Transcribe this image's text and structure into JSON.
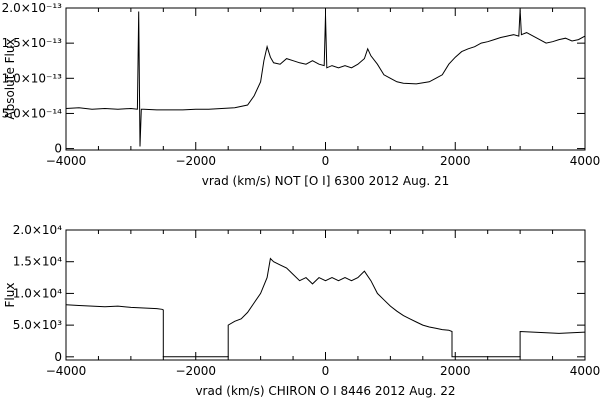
{
  "chart_data": [
    {
      "type": "line",
      "title": "",
      "xlabel": "vrad (km/s)   NOT [O I] 6300   2012 Aug. 21",
      "ylabel": "Absolute Flux",
      "xlim": [
        -4000,
        4000
      ],
      "ylim": [
        -2e-15,
        2e-13
      ],
      "x_ticks": [
        -4000,
        -2000,
        0,
        2000,
        4000
      ],
      "x_tick_labels": [
        "−4000",
        "−2000",
        "0",
        "2000",
        "4000"
      ],
      "y_ticks": [
        0,
        5e-14,
        1e-13,
        1.5e-13,
        2e-13
      ],
      "y_tick_labels": [
        "0",
        "5.0×10⁻¹⁴",
        "1.0×10⁻¹³",
        "1.5×10⁻¹³",
        "2.0×10⁻¹³"
      ],
      "grid": false,
      "series": [
        {
          "x": [
            -4000,
            -3800,
            -3600,
            -3400,
            -3200,
            -3000,
            -2900,
            -2880,
            -2860,
            -2840,
            -2800,
            -2600,
            -2400,
            -2200,
            -2000,
            -1800,
            -1600,
            -1400,
            -1200,
            -1100,
            -1000,
            -950,
            -900,
            -850,
            -800,
            -700,
            -600,
            -500,
            -400,
            -300,
            -200,
            -100,
            -20,
            0,
            20,
            100,
            200,
            300,
            400,
            500,
            600,
            650,
            700,
            800,
            900,
            1000,
            1100,
            1200,
            1400,
            1600,
            1700,
            1800,
            1900,
            2000,
            2100,
            2200,
            2300,
            2400,
            2500,
            2600,
            2700,
            2800,
            2900,
            2980,
            3000,
            3020,
            3100,
            3200,
            3300,
            3400,
            3500,
            3600,
            3700,
            3800,
            3900,
            4000
          ],
          "y": [
            5.7e-14,
            5.8e-14,
            5.6e-14,
            5.7e-14,
            5.6e-14,
            5.7e-14,
            5.6e-14,
            1.95e-13,
            3e-15,
            5.6e-14,
            5.6e-14,
            5.5e-14,
            5.5e-14,
            5.5e-14,
            5.6e-14,
            5.6e-14,
            5.7e-14,
            5.8e-14,
            6.2e-14,
            7.5e-14,
            9.5e-14,
            1.25e-13,
            1.45e-13,
            1.3e-13,
            1.22e-13,
            1.2e-13,
            1.28e-13,
            1.25e-13,
            1.22e-13,
            1.2e-13,
            1.25e-13,
            1.2e-13,
            1.18e-13,
            1.9e-13,
            1.15e-13,
            1.18e-13,
            1.15e-13,
            1.18e-13,
            1.15e-13,
            1.2e-13,
            1.28e-13,
            1.42e-13,
            1.32e-13,
            1.2e-13,
            1.05e-13,
            1e-13,
            9.5e-14,
            9.3e-14,
            9.2e-14,
            9.5e-14,
            1e-13,
            1.05e-13,
            1.2e-13,
            1.3e-13,
            1.38e-13,
            1.42e-13,
            1.45e-13,
            1.5e-13,
            1.52e-13,
            1.55e-13,
            1.58e-13,
            1.6e-13,
            1.62e-13,
            1.6e-13,
            1.98e-13,
            1.62e-13,
            1.65e-13,
            1.6e-13,
            1.55e-13,
            1.5e-13,
            1.52e-13,
            1.55e-13,
            1.57e-13,
            1.53e-13,
            1.55e-13,
            1.6e-13
          ]
        }
      ]
    },
    {
      "type": "line",
      "title": "",
      "xlabel": "vrad (km/s)   CHIRON O I 8446   2012 Aug. 22",
      "ylabel": "Flux",
      "xlim": [
        -4000,
        4000
      ],
      "ylim": [
        -500,
        20000
      ],
      "x_ticks": [
        -4000,
        -2000,
        0,
        2000,
        4000
      ],
      "x_tick_labels": [
        "−4000",
        "−2000",
        "0",
        "2000",
        "4000"
      ],
      "y_ticks": [
        0,
        5000,
        10000,
        15000,
        20000
      ],
      "y_tick_labels": [
        "0",
        "5.0×10³",
        "1.0×10⁴",
        "1.5×10⁴",
        "2.0×10⁴"
      ],
      "grid": false,
      "series": [
        {
          "x": [
            -4000,
            -3800,
            -3600,
            -3400,
            -3200,
            -3000,
            -2800,
            -2600,
            -2520,
            -2500,
            -2500,
            -1500,
            -1500,
            -1400,
            -1300,
            -1200,
            -1100,
            -1000,
            -900,
            -850,
            -800,
            -700,
            -600,
            -500,
            -400,
            -300,
            -200,
            -100,
            0,
            100,
            200,
            300,
            400,
            500,
            600,
            700,
            800,
            900,
            1000,
            1100,
            1200,
            1300,
            1400,
            1500,
            1600,
            1700,
            1800,
            1900,
            1950,
            1950,
            3000,
            3000,
            3200,
            3400,
            3600,
            3800,
            4000
          ],
          "y": [
            8200,
            8100,
            8000,
            7900,
            8000,
            7800,
            7700,
            7600,
            7500,
            7400,
            0,
            0,
            5000,
            5600,
            6000,
            7000,
            8500,
            10000,
            12500,
            15500,
            15000,
            14500,
            14000,
            13000,
            12000,
            12500,
            11500,
            12500,
            12000,
            12500,
            12000,
            12500,
            12000,
            12500,
            13500,
            12000,
            10000,
            9000,
            8000,
            7200,
            6500,
            6000,
            5500,
            5000,
            4700,
            4500,
            4300,
            4200,
            4000,
            0,
            0,
            4000,
            3900,
            3800,
            3700,
            3800,
            3900
          ]
        }
      ]
    }
  ]
}
